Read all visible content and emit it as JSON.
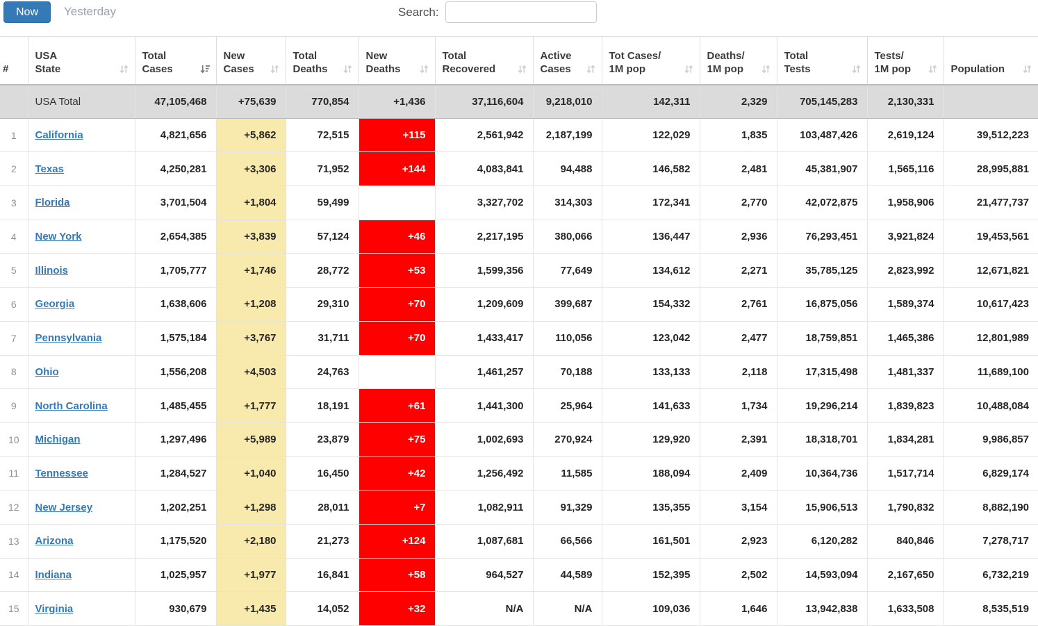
{
  "toolbar": {
    "now_label": "Now",
    "yesterday_label": "Yesterday",
    "search_label": "Search:",
    "search_value": ""
  },
  "colors": {
    "accent_blue": "#337ab7",
    "new_cases_highlight": "#f8e9ac",
    "new_deaths_highlight": "#fe0000",
    "total_row_background": "#dbdbdb",
    "link_blue": "#337ab7"
  },
  "table": {
    "columns": [
      {
        "key": "rank",
        "label": "#",
        "sortable": false,
        "sorted": null
      },
      {
        "key": "state",
        "label": "USA\nState",
        "sortable": true,
        "sorted": null
      },
      {
        "key": "total_cases",
        "label": "Total\nCases",
        "sortable": true,
        "sorted": "desc"
      },
      {
        "key": "new_cases",
        "label": "New\nCases",
        "sortable": true,
        "sorted": null
      },
      {
        "key": "total_deaths",
        "label": "Total\nDeaths",
        "sortable": true,
        "sorted": null
      },
      {
        "key": "new_deaths",
        "label": "New\nDeaths",
        "sortable": true,
        "sorted": null
      },
      {
        "key": "total_recovered",
        "label": "Total\nRecovered",
        "sortable": true,
        "sorted": null
      },
      {
        "key": "active_cases",
        "label": "Active\nCases",
        "sortable": true,
        "sorted": null
      },
      {
        "key": "cases_1m",
        "label": "Tot Cases/\n1M pop",
        "sortable": true,
        "sorted": null
      },
      {
        "key": "deaths_1m",
        "label": "Deaths/\n1M pop",
        "sortable": true,
        "sorted": null
      },
      {
        "key": "total_tests",
        "label": "Total\nTests",
        "sortable": true,
        "sorted": null
      },
      {
        "key": "tests_1m",
        "label": "Tests/\n1M pop",
        "sortable": true,
        "sorted": null
      },
      {
        "key": "population",
        "label": "Population",
        "sortable": true,
        "sorted": null
      }
    ],
    "sort_icons": {
      "unsorted": "up-down-arrows-icon",
      "desc": "sort-amount-desc-icon"
    },
    "total_row": {
      "rank": "",
      "state": "USA Total",
      "total_cases": "47,105,468",
      "new_cases": "+75,639",
      "total_deaths": "770,854",
      "new_deaths": "+1,436",
      "total_recovered": "37,116,604",
      "active_cases": "9,218,010",
      "cases_1m": "142,311",
      "deaths_1m": "2,329",
      "total_tests": "705,145,283",
      "tests_1m": "2,130,331",
      "population": ""
    },
    "rows": [
      {
        "rank": "1",
        "state": "California",
        "total_cases": "4,821,656",
        "new_cases": "+5,862",
        "total_deaths": "72,515",
        "new_deaths": "+115",
        "total_recovered": "2,561,942",
        "active_cases": "2,187,199",
        "cases_1m": "122,029",
        "deaths_1m": "1,835",
        "total_tests": "103,487,426",
        "tests_1m": "2,619,124",
        "population": "39,512,223"
      },
      {
        "rank": "2",
        "state": "Texas",
        "total_cases": "4,250,281",
        "new_cases": "+3,306",
        "total_deaths": "71,952",
        "new_deaths": "+144",
        "total_recovered": "4,083,841",
        "active_cases": "94,488",
        "cases_1m": "146,582",
        "deaths_1m": "2,481",
        "total_tests": "45,381,907",
        "tests_1m": "1,565,116",
        "population": "28,995,881"
      },
      {
        "rank": "3",
        "state": "Florida",
        "total_cases": "3,701,504",
        "new_cases": "+1,804",
        "total_deaths": "59,499",
        "new_deaths": "",
        "total_recovered": "3,327,702",
        "active_cases": "314,303",
        "cases_1m": "172,341",
        "deaths_1m": "2,770",
        "total_tests": "42,072,875",
        "tests_1m": "1,958,906",
        "population": "21,477,737"
      },
      {
        "rank": "4",
        "state": "New York",
        "total_cases": "2,654,385",
        "new_cases": "+3,839",
        "total_deaths": "57,124",
        "new_deaths": "+46",
        "total_recovered": "2,217,195",
        "active_cases": "380,066",
        "cases_1m": "136,447",
        "deaths_1m": "2,936",
        "total_tests": "76,293,451",
        "tests_1m": "3,921,824",
        "population": "19,453,561"
      },
      {
        "rank": "5",
        "state": "Illinois",
        "total_cases": "1,705,777",
        "new_cases": "+1,746",
        "total_deaths": "28,772",
        "new_deaths": "+53",
        "total_recovered": "1,599,356",
        "active_cases": "77,649",
        "cases_1m": "134,612",
        "deaths_1m": "2,271",
        "total_tests": "35,785,125",
        "tests_1m": "2,823,992",
        "population": "12,671,821"
      },
      {
        "rank": "6",
        "state": "Georgia",
        "total_cases": "1,638,606",
        "new_cases": "+1,208",
        "total_deaths": "29,310",
        "new_deaths": "+70",
        "total_recovered": "1,209,609",
        "active_cases": "399,687",
        "cases_1m": "154,332",
        "deaths_1m": "2,761",
        "total_tests": "16,875,056",
        "tests_1m": "1,589,374",
        "population": "10,617,423"
      },
      {
        "rank": "7",
        "state": "Pennsylvania",
        "total_cases": "1,575,184",
        "new_cases": "+3,767",
        "total_deaths": "31,711",
        "new_deaths": "+70",
        "total_recovered": "1,433,417",
        "active_cases": "110,056",
        "cases_1m": "123,042",
        "deaths_1m": "2,477",
        "total_tests": "18,759,851",
        "tests_1m": "1,465,386",
        "population": "12,801,989"
      },
      {
        "rank": "8",
        "state": "Ohio",
        "total_cases": "1,556,208",
        "new_cases": "+4,503",
        "total_deaths": "24,763",
        "new_deaths": "",
        "total_recovered": "1,461,257",
        "active_cases": "70,188",
        "cases_1m": "133,133",
        "deaths_1m": "2,118",
        "total_tests": "17,315,498",
        "tests_1m": "1,481,337",
        "population": "11,689,100"
      },
      {
        "rank": "9",
        "state": "North Carolina",
        "total_cases": "1,485,455",
        "new_cases": "+1,777",
        "total_deaths": "18,191",
        "new_deaths": "+61",
        "total_recovered": "1,441,300",
        "active_cases": "25,964",
        "cases_1m": "141,633",
        "deaths_1m": "1,734",
        "total_tests": "19,296,214",
        "tests_1m": "1,839,823",
        "population": "10,488,084"
      },
      {
        "rank": "10",
        "state": "Michigan",
        "total_cases": "1,297,496",
        "new_cases": "+5,989",
        "total_deaths": "23,879",
        "new_deaths": "+75",
        "total_recovered": "1,002,693",
        "active_cases": "270,924",
        "cases_1m": "129,920",
        "deaths_1m": "2,391",
        "total_tests": "18,318,701",
        "tests_1m": "1,834,281",
        "population": "9,986,857"
      },
      {
        "rank": "11",
        "state": "Tennessee",
        "total_cases": "1,284,527",
        "new_cases": "+1,040",
        "total_deaths": "16,450",
        "new_deaths": "+42",
        "total_recovered": "1,256,492",
        "active_cases": "11,585",
        "cases_1m": "188,094",
        "deaths_1m": "2,409",
        "total_tests": "10,364,736",
        "tests_1m": "1,517,714",
        "population": "6,829,174"
      },
      {
        "rank": "12",
        "state": "New Jersey",
        "total_cases": "1,202,251",
        "new_cases": "+1,298",
        "total_deaths": "28,011",
        "new_deaths": "+7",
        "total_recovered": "1,082,911",
        "active_cases": "91,329",
        "cases_1m": "135,355",
        "deaths_1m": "3,154",
        "total_tests": "15,906,513",
        "tests_1m": "1,790,832",
        "population": "8,882,190"
      },
      {
        "rank": "13",
        "state": "Arizona",
        "total_cases": "1,175,520",
        "new_cases": "+2,180",
        "total_deaths": "21,273",
        "new_deaths": "+124",
        "total_recovered": "1,087,681",
        "active_cases": "66,566",
        "cases_1m": "161,501",
        "deaths_1m": "2,923",
        "total_tests": "6,120,282",
        "tests_1m": "840,846",
        "population": "7,278,717"
      },
      {
        "rank": "14",
        "state": "Indiana",
        "total_cases": "1,025,957",
        "new_cases": "+1,977",
        "total_deaths": "16,841",
        "new_deaths": "+58",
        "total_recovered": "964,527",
        "active_cases": "44,589",
        "cases_1m": "152,395",
        "deaths_1m": "2,502",
        "total_tests": "14,593,094",
        "tests_1m": "2,167,650",
        "population": "6,732,219"
      },
      {
        "rank": "15",
        "state": "Virginia",
        "total_cases": "930,679",
        "new_cases": "+1,435",
        "total_deaths": "14,052",
        "new_deaths": "+32",
        "total_recovered": "N/A",
        "active_cases": "N/A",
        "cases_1m": "109,036",
        "deaths_1m": "1,646",
        "total_tests": "13,942,838",
        "tests_1m": "1,633,508",
        "population": "8,535,519"
      }
    ]
  }
}
